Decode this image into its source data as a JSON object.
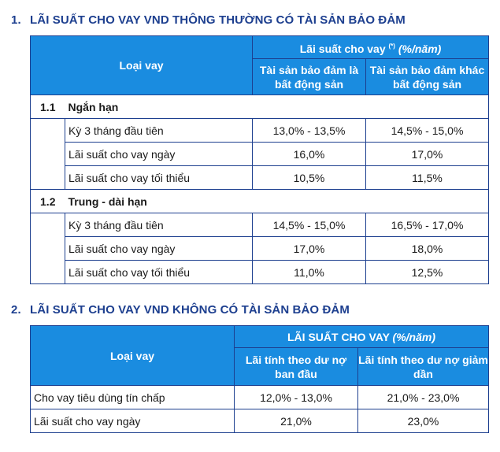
{
  "section1": {
    "number": "1.",
    "title": "LÃI SUẤT CHO VAY VND THÔNG THƯỜNG CÓ TÀI SẢN BẢO ĐẢM",
    "header": {
      "loai_vay": "Loại vay",
      "group_main": "Lãi suất cho vay",
      "group_sup": "(*)",
      "group_unit": "(%/năm)",
      "col1": "Tài sản bảo đảm là bất động sản",
      "col2": "Tài sản bảo đảm khác bất động sản"
    },
    "groups": [
      {
        "index": "1.1",
        "name": "Ngắn hạn",
        "rows": [
          {
            "label": "Kỳ 3 tháng đầu tiên",
            "v1": "13,0% - 13,5%",
            "v2": "14,5% - 15,0%"
          },
          {
            "label": "Lãi suất cho vay ngày",
            "v1": "16,0%",
            "v2": "17,0%"
          },
          {
            "label": "Lãi suất cho vay tối thiểu",
            "v1": "10,5%",
            "v2": "11,5%"
          }
        ]
      },
      {
        "index": "1.2",
        "name": "Trung - dài hạn",
        "rows": [
          {
            "label": "Kỳ 3 tháng đầu tiên",
            "v1": "14,5% - 15,0%",
            "v2": "16,5% - 17,0%"
          },
          {
            "label": "Lãi suất cho vay ngày",
            "v1": "17,0%",
            "v2": "18,0%"
          },
          {
            "label": "Lãi suất cho vay tối thiểu",
            "v1": "11,0%",
            "v2": "12,5%"
          }
        ]
      }
    ]
  },
  "section2": {
    "number": "2.",
    "title": "LÃI SUẤT CHO VAY VND KHÔNG CÓ TÀI SẢN BẢO ĐẢM",
    "header": {
      "loai_vay": "Loại vay",
      "group_main": "LÃI SUẤT CHO VAY",
      "group_unit": "(%/năm)",
      "col1": "Lãi tính theo dư nợ ban đầu",
      "col2": "Lãi tính theo dư nợ giảm dần"
    },
    "rows": [
      {
        "label": "Cho vay tiêu dùng tín chấp",
        "v1": "12,0% - 13,0%",
        "v2": "21,0% - 23,0%"
      },
      {
        "label": "Lãi suất cho vay ngày",
        "v1": "21,0%",
        "v2": "23,0%"
      }
    ]
  }
}
